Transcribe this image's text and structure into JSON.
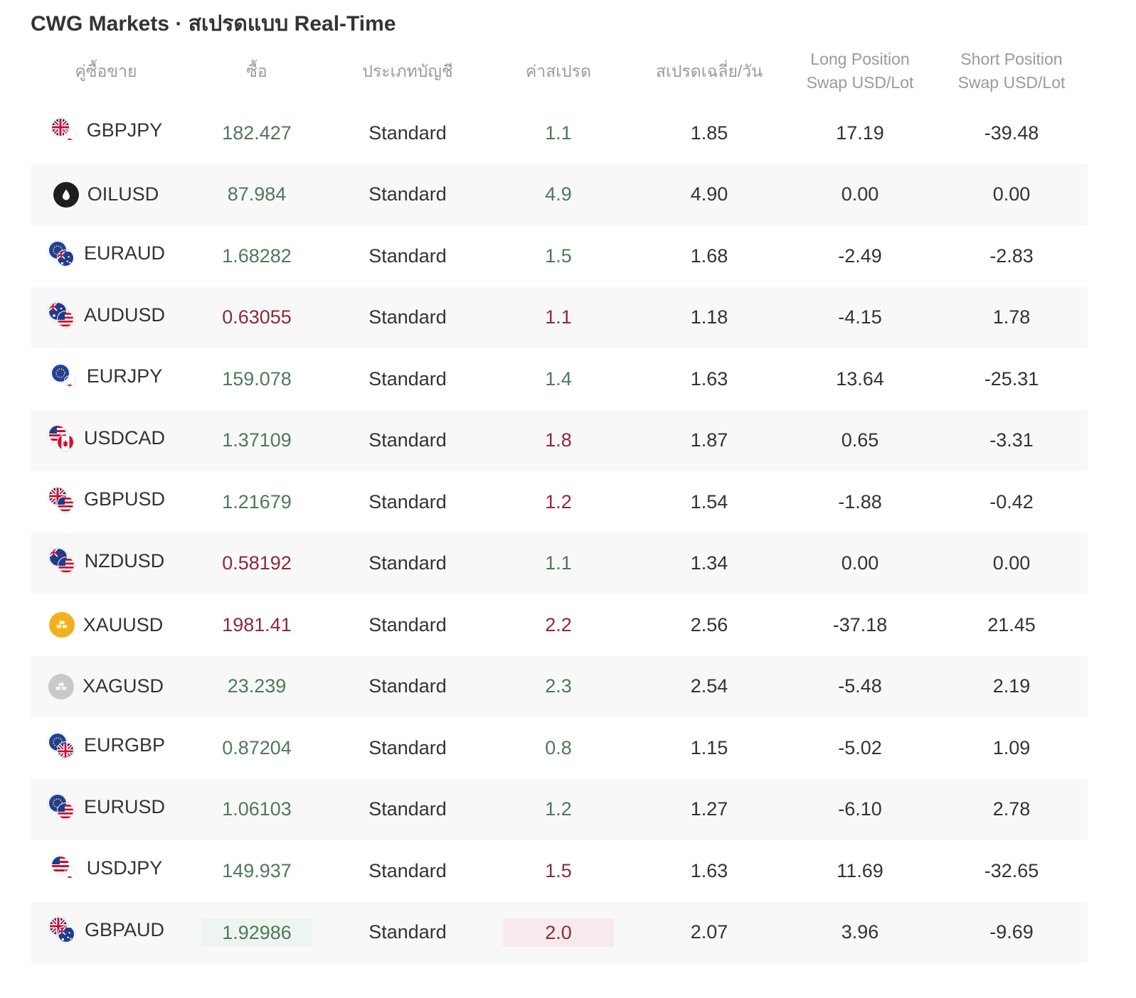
{
  "title": "CWG Markets · สเปรดแบบ Real-Time",
  "colors": {
    "up": "#4e7a5a",
    "down": "#8c2a3c",
    "text": "#333333",
    "header": "#9a9a9a",
    "stripe": "#f8f8f8",
    "highlight_up": "#eef5f0",
    "highlight_down": "#f8eaec"
  },
  "headers": {
    "pair": "คู่ซื้อขาย",
    "buy": "ซื้อ",
    "account": "ประเภทบัญชี",
    "spread": "ค่าสเปรด",
    "avg_spread": "สเปรดเฉลี่ย/วัน",
    "long_line1": "Long Position",
    "long_line2": "Swap USD/Lot",
    "short_line1": "Short Position",
    "short_line2": "Swap USD/Lot"
  },
  "rows": [
    {
      "pair": "GBPJPY",
      "icon": "gbp-jpy-flag-icon",
      "flags": [
        "gb",
        "jp"
      ],
      "buy": "182.427",
      "buy_dir": "up",
      "account": "Standard",
      "spread": "1.1",
      "spread_dir": "up",
      "avg": "1.85",
      "long": "17.19",
      "short": "-39.48"
    },
    {
      "pair": "OILUSD",
      "icon": "oil-drop-icon",
      "flags": [
        "oil"
      ],
      "buy": "87.984",
      "buy_dir": "up",
      "account": "Standard",
      "spread": "4.9",
      "spread_dir": "up",
      "avg": "4.90",
      "long": "0.00",
      "short": "0.00"
    },
    {
      "pair": "EURAUD",
      "icon": "eur-aud-flag-icon",
      "flags": [
        "eu",
        "au"
      ],
      "buy": "1.68282",
      "buy_dir": "up",
      "account": "Standard",
      "spread": "1.5",
      "spread_dir": "up",
      "avg": "1.68",
      "long": "-2.49",
      "short": "-2.83"
    },
    {
      "pair": "AUDUSD",
      "icon": "aud-usd-flag-icon",
      "flags": [
        "au",
        "us"
      ],
      "buy": "0.63055",
      "buy_dir": "down",
      "account": "Standard",
      "spread": "1.1",
      "spread_dir": "down",
      "avg": "1.18",
      "long": "-4.15",
      "short": "1.78"
    },
    {
      "pair": "EURJPY",
      "icon": "eur-jpy-flag-icon",
      "flags": [
        "eu",
        "jp"
      ],
      "buy": "159.078",
      "buy_dir": "up",
      "account": "Standard",
      "spread": "1.4",
      "spread_dir": "up",
      "avg": "1.63",
      "long": "13.64",
      "short": "-25.31"
    },
    {
      "pair": "USDCAD",
      "icon": "usd-cad-flag-icon",
      "flags": [
        "us",
        "ca"
      ],
      "buy": "1.37109",
      "buy_dir": "up",
      "account": "Standard",
      "spread": "1.8",
      "spread_dir": "down",
      "avg": "1.87",
      "long": "0.65",
      "short": "-3.31"
    },
    {
      "pair": "GBPUSD",
      "icon": "gbp-usd-flag-icon",
      "flags": [
        "gb",
        "us"
      ],
      "buy": "1.21679",
      "buy_dir": "up",
      "account": "Standard",
      "spread": "1.2",
      "spread_dir": "down",
      "avg": "1.54",
      "long": "-1.88",
      "short": "-0.42"
    },
    {
      "pair": "NZDUSD",
      "icon": "nzd-usd-flag-icon",
      "flags": [
        "nz",
        "us"
      ],
      "buy": "0.58192",
      "buy_dir": "down",
      "account": "Standard",
      "spread": "1.1",
      "spread_dir": "up",
      "avg": "1.34",
      "long": "0.00",
      "short": "0.00"
    },
    {
      "pair": "XAUUSD",
      "icon": "gold-bar-icon",
      "flags": [
        "gold"
      ],
      "buy": "1981.41",
      "buy_dir": "down",
      "account": "Standard",
      "spread": "2.2",
      "spread_dir": "down",
      "avg": "2.56",
      "long": "-37.18",
      "short": "21.45"
    },
    {
      "pair": "XAGUSD",
      "icon": "silver-bar-icon",
      "flags": [
        "silver"
      ],
      "buy": "23.239",
      "buy_dir": "up",
      "account": "Standard",
      "spread": "2.3",
      "spread_dir": "up",
      "avg": "2.54",
      "long": "-5.48",
      "short": "2.19"
    },
    {
      "pair": "EURGBP",
      "icon": "eur-gbp-flag-icon",
      "flags": [
        "eu",
        "gb"
      ],
      "buy": "0.87204",
      "buy_dir": "up",
      "account": "Standard",
      "spread": "0.8",
      "spread_dir": "up",
      "avg": "1.15",
      "long": "-5.02",
      "short": "1.09"
    },
    {
      "pair": "EURUSD",
      "icon": "eur-usd-flag-icon",
      "flags": [
        "eu",
        "us"
      ],
      "buy": "1.06103",
      "buy_dir": "up",
      "account": "Standard",
      "spread": "1.2",
      "spread_dir": "up",
      "avg": "1.27",
      "long": "-6.10",
      "short": "2.78"
    },
    {
      "pair": "USDJPY",
      "icon": "usd-jpy-flag-icon",
      "flags": [
        "us",
        "jp"
      ],
      "buy": "149.937",
      "buy_dir": "up",
      "account": "Standard",
      "spread": "1.5",
      "spread_dir": "down",
      "avg": "1.63",
      "long": "11.69",
      "short": "-32.65"
    },
    {
      "pair": "GBPAUD",
      "icon": "gbp-aud-flag-icon",
      "flags": [
        "gb",
        "au"
      ],
      "buy": "1.92986",
      "buy_dir": "up",
      "buy_highlight": true,
      "account": "Standard",
      "spread": "2.0",
      "spread_dir": "down",
      "spread_highlight": true,
      "avg": "2.07",
      "long": "3.96",
      "short": "-9.69"
    }
  ]
}
